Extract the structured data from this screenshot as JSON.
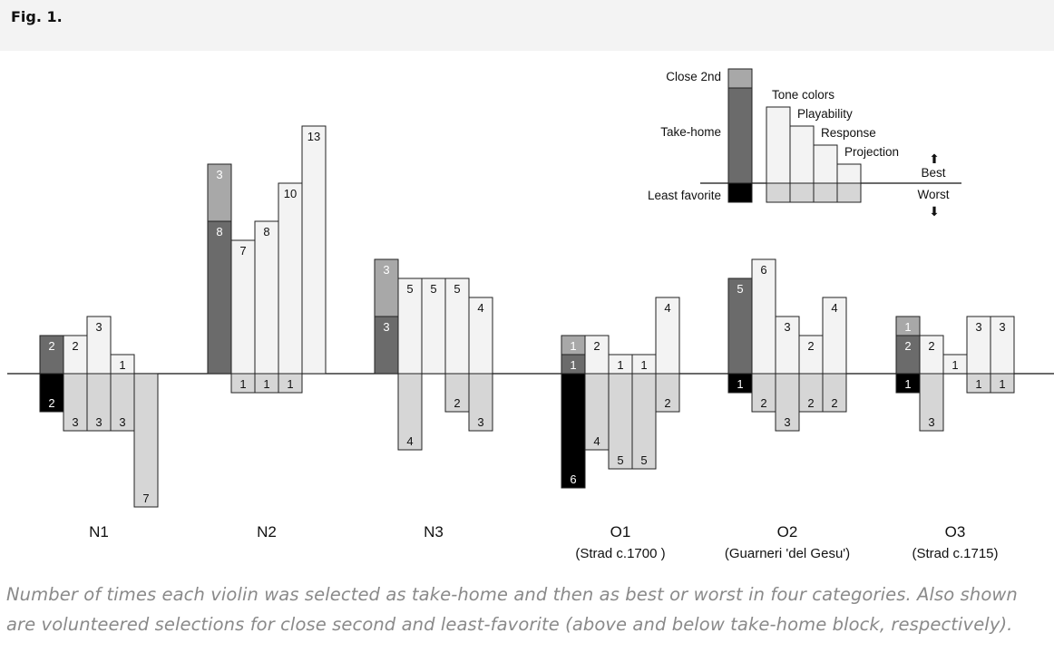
{
  "header": {
    "label": "Fig. 1."
  },
  "caption": "Number of times each violin was selected as take-home and then as best or worst in four categories. Also shown are volunteered selections for close second and least-favorite (above and below take-home block, respectively).",
  "colors": {
    "take_home": "#6b6b6b",
    "close_second": "#a8a8a8",
    "least_favorite": "#000000",
    "best": "#f3f3f3",
    "worst": "#d6d6d6",
    "stroke": "#222222"
  },
  "chart_data": {
    "type": "bar",
    "title": "",
    "categories_order": [
      "Take-home",
      "Tone colors",
      "Playability",
      "Response",
      "Projection"
    ],
    "violins": [
      {
        "name": "N1",
        "sub": "",
        "take_home": 2,
        "close_second": null,
        "least_favorite": 2,
        "best": [
          2,
          3,
          1,
          null
        ],
        "worst": [
          3,
          3,
          3,
          7
        ]
      },
      {
        "name": "N2",
        "sub": "",
        "take_home": 8,
        "close_second": 3,
        "least_favorite": null,
        "best": [
          7,
          8,
          10,
          13
        ],
        "worst": [
          1,
          1,
          1,
          null
        ]
      },
      {
        "name": "N3",
        "sub": "",
        "take_home": 3,
        "close_second": 3,
        "least_favorite": null,
        "best": [
          5,
          5,
          5,
          4
        ],
        "worst": [
          4,
          null,
          2,
          3
        ]
      },
      {
        "name": "O1",
        "sub": "(Strad c.1700 )",
        "take_home": 1,
        "close_second": 1,
        "least_favorite": 6,
        "best": [
          2,
          1,
          1,
          4
        ],
        "worst": [
          4,
          5,
          5,
          2
        ]
      },
      {
        "name": "O2",
        "sub": "(Guarneri 'del Gesu')",
        "take_home": 5,
        "close_second": null,
        "least_favorite": 1,
        "best": [
          6,
          3,
          2,
          4
        ],
        "worst": [
          2,
          3,
          2,
          2
        ]
      },
      {
        "name": "O3",
        "sub": "(Strad c.1715)",
        "take_home": 2,
        "close_second": 1,
        "least_favorite": 1,
        "best": [
          2,
          1,
          3,
          3
        ],
        "worst": [
          3,
          null,
          1,
          1
        ]
      }
    ],
    "legend": {
      "close_second": "Close 2nd",
      "take_home": "Take-home",
      "least_favorite": "Least favorite",
      "categories": [
        "Tone colors",
        "Playability",
        "Response",
        "Projection"
      ],
      "best": "Best",
      "worst": "Worst",
      "best_arrow": "⬆",
      "worst_arrow": "⬇"
    }
  }
}
